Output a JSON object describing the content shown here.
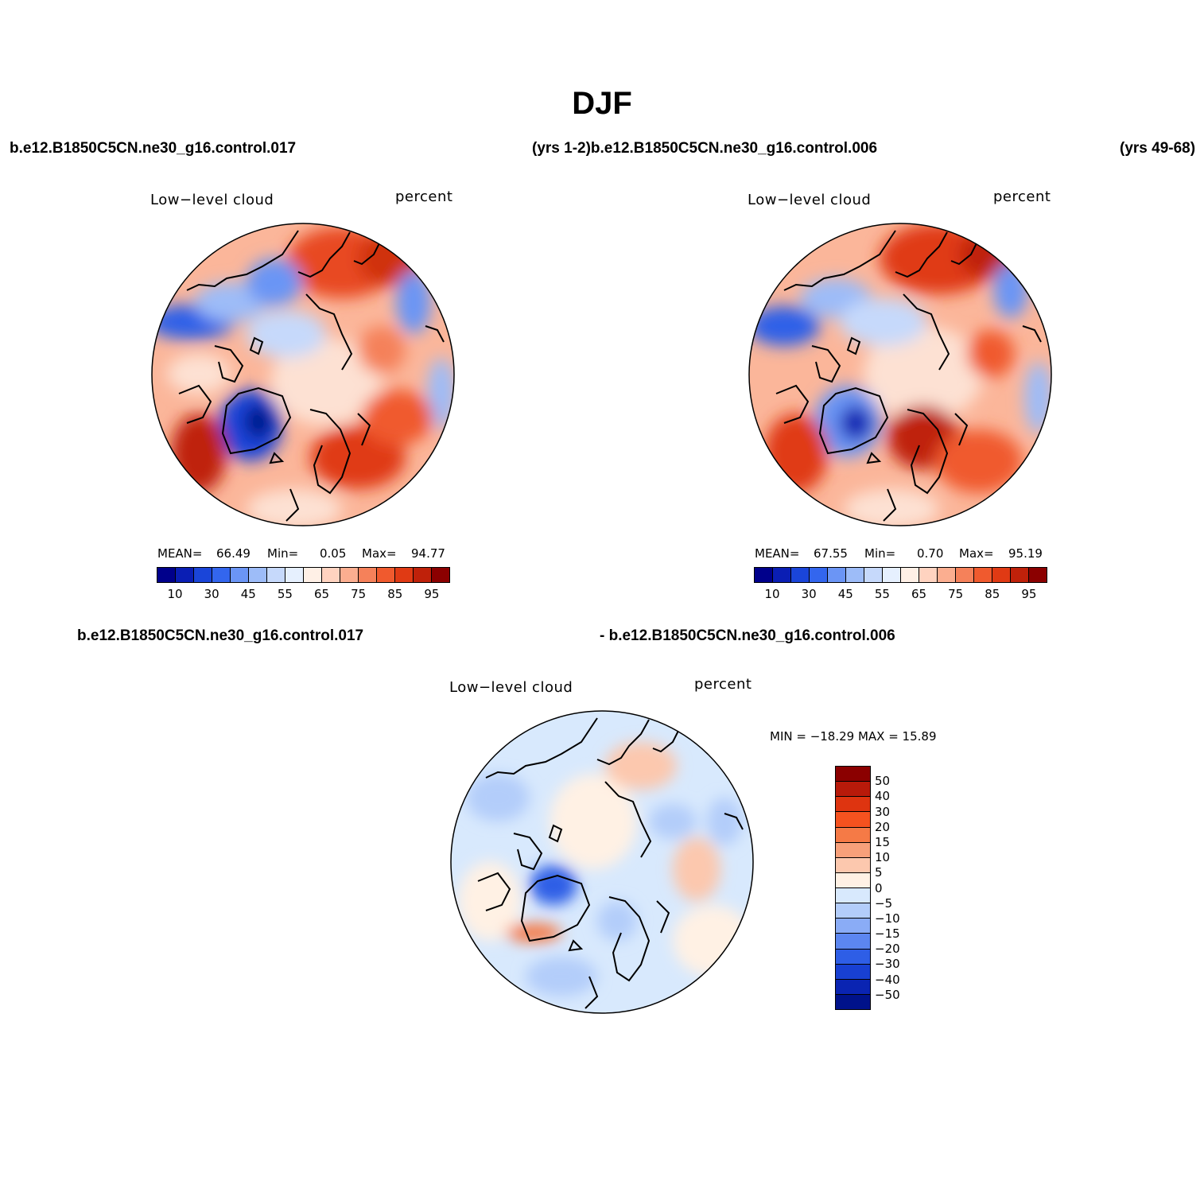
{
  "title": "DJF",
  "case_labels": {
    "top_left": "b.e12.B1850C5CN.ne30_g16.control.017",
    "top_mid": "(yrs 1-2)b.e12.B1850C5CN.ne30_g16.control.006",
    "top_right": "(yrs 49-68)",
    "bottom_left": "b.e12.B1850C5CN.ne30_g16.control.017",
    "bottom_right": "- b.e12.B1850C5CN.ne30_g16.control.006"
  },
  "panels": [
    {
      "variable": "Low−level cloud",
      "units": "percent",
      "stats": {
        "mean_label": "MEAN=",
        "mean": "66.49",
        "min_label": "Min=",
        "min": "0.05",
        "max_label": "Max=",
        "max": "94.77"
      }
    },
    {
      "variable": "Low−level cloud",
      "units": "percent",
      "stats": {
        "mean_label": "MEAN=",
        "mean": "67.55",
        "min_label": "Min=",
        "min": "0.70",
        "max_label": "Max=",
        "max": "95.19"
      }
    },
    {
      "variable": "Low−level cloud",
      "units": "percent",
      "stats": {
        "text": "MIN = −18.29 MAX =  15.89"
      }
    }
  ],
  "colorbar_abs": {
    "colors": [
      "#00008b",
      "#0a1eb4",
      "#1a45d9",
      "#3366ee",
      "#6b95f5",
      "#9dbcf8",
      "#c6d9fb",
      "#e6f0fe",
      "#fff0e6",
      "#ffd3c0",
      "#fbae90",
      "#f5815a",
      "#f05a2e",
      "#e03a14",
      "#bf210a",
      "#8b0000"
    ],
    "ticks": [
      "10",
      "30",
      "45",
      "55",
      "65",
      "75",
      "85",
      "95"
    ]
  },
  "colorbar_diff": {
    "colors": [
      "#8b0000",
      "#b81a0a",
      "#de3410",
      "#f5521f",
      "#f57a46",
      "#f7a07a",
      "#fcc8ae",
      "#fff1e4",
      "#d8e9fd",
      "#b3cdfa",
      "#8aacf6",
      "#5c86f0",
      "#2e5ee6",
      "#1840d2",
      "#0a24b2",
      "#00128a"
    ],
    "ticks": [
      "50",
      "40",
      "30",
      "20",
      "15",
      "10",
      "5",
      "0",
      "−5",
      "−10",
      "−15",
      "−20",
      "−30",
      "−40",
      "−50"
    ]
  }
}
